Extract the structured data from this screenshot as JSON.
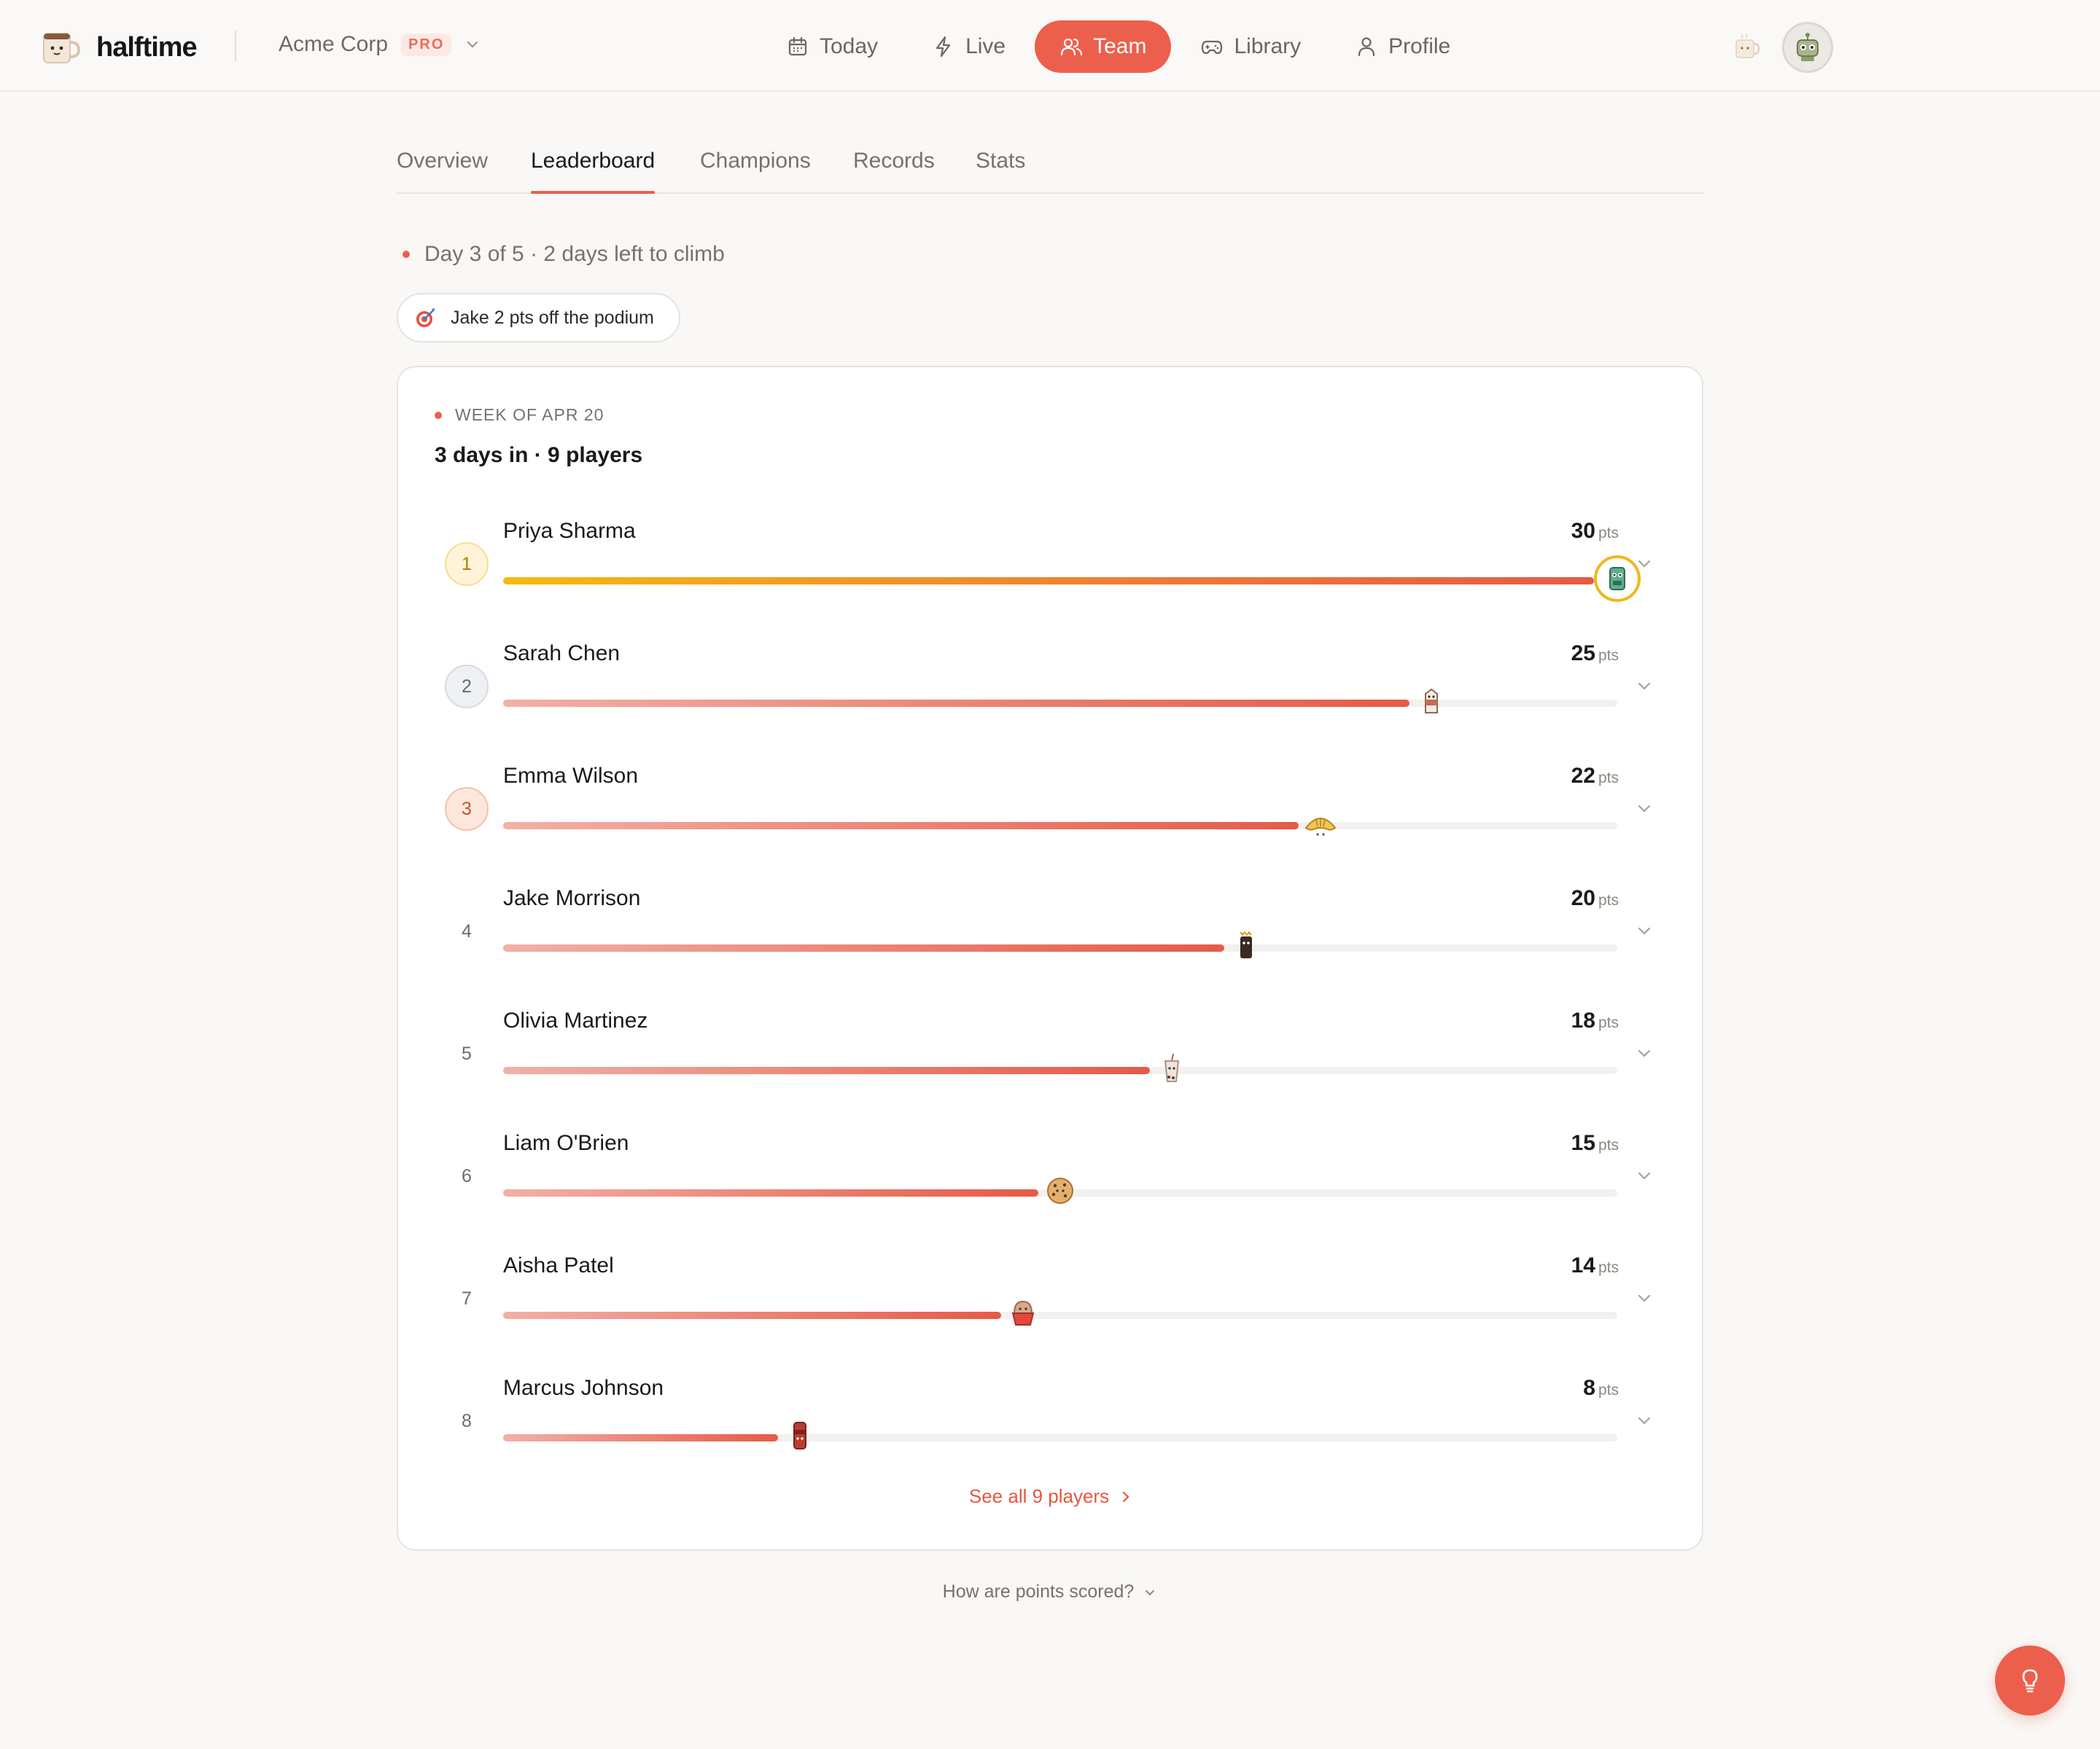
{
  "brand": {
    "name": "halftime"
  },
  "workspace": {
    "name": "Acme Corp",
    "badge": "PRO"
  },
  "nav": {
    "items": [
      {
        "label": "Today",
        "icon": "calendar-icon"
      },
      {
        "label": "Live",
        "icon": "bolt-icon"
      },
      {
        "label": "Team",
        "icon": "users-icon",
        "active": true
      },
      {
        "label": "Library",
        "icon": "gamepad-icon"
      },
      {
        "label": "Profile",
        "icon": "user-icon"
      }
    ]
  },
  "tabs": [
    {
      "label": "Overview"
    },
    {
      "label": "Leaderboard",
      "active": true
    },
    {
      "label": "Champions"
    },
    {
      "label": "Records"
    },
    {
      "label": "Stats"
    }
  ],
  "status": {
    "text": "Day 3 of 5 · 2 days left to climb"
  },
  "callout": {
    "text": "Jake 2 pts off the podium",
    "icon": "target-icon"
  },
  "card": {
    "week_label": "WEEK OF APR 20",
    "summary": "3 days in · 9 players",
    "pts_unit": "pts",
    "max_points": 30,
    "see_all": "See all 9 players"
  },
  "players": [
    {
      "rank": "1",
      "name": "Priya Sharma",
      "points": 30,
      "mascot": "robot-icon"
    },
    {
      "rank": "2",
      "name": "Sarah Chen",
      "points": 25,
      "mascot": "milk-carton-icon"
    },
    {
      "rank": "3",
      "name": "Emma Wilson",
      "points": 22,
      "mascot": "croissant-icon"
    },
    {
      "rank": "4",
      "name": "Jake Morrison",
      "points": 20,
      "mascot": "chocolate-bar-icon"
    },
    {
      "rank": "5",
      "name": "Olivia Martinez",
      "points": 18,
      "mascot": "boba-tea-icon"
    },
    {
      "rank": "6",
      "name": "Liam O'Brien",
      "points": 15,
      "mascot": "cookie-icon"
    },
    {
      "rank": "7",
      "name": "Aisha Patel",
      "points": 14,
      "mascot": "cupcake-icon"
    },
    {
      "rank": "8",
      "name": "Marcus Johnson",
      "points": 8,
      "mascot": "soda-can-icon"
    }
  ],
  "footer": {
    "how_scored": "How are points scored?"
  },
  "colors": {
    "accent": "#ec5f4c",
    "gold": "#f0b81e",
    "track": "#f3f1ee"
  }
}
